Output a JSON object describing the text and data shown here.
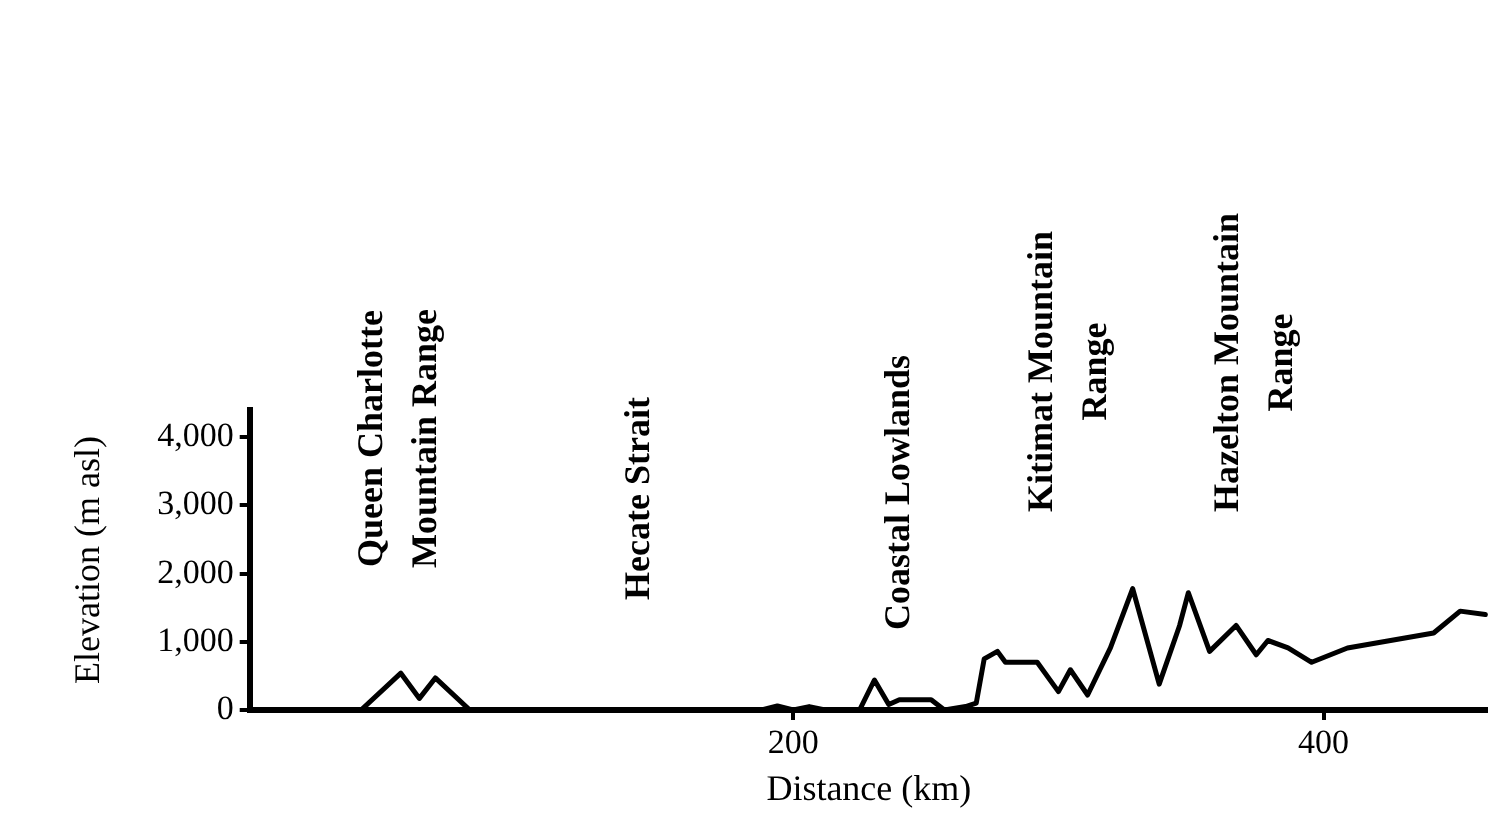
{
  "chart_data": {
    "type": "line",
    "xlabel": "Distance (km)",
    "ylabel": "Elevation (m asl)",
    "x": [
      -5,
      37,
      52,
      59,
      65,
      78,
      188,
      194,
      200,
      206,
      212,
      225,
      230.6,
      236,
      240,
      250,
      252,
      257,
      265,
      269,
      272,
      277,
      280,
      292,
      300,
      304.5,
      311,
      319.6,
      328,
      338,
      345.7,
      349,
      357,
      367,
      374.6,
      379,
      386.6,
      395.5,
      409,
      441.5,
      451.5,
      461
    ],
    "series": [
      {
        "color": "#000000",
        "values": [
          0,
          0,
          540,
          170,
          470,
          0,
          0,
          60,
          0,
          50,
          0,
          0,
          440,
          80,
          150,
          150,
          150,
          0,
          50,
          100,
          750,
          860,
          700,
          700,
          270,
          590,
          220,
          910,
          1780,
          380,
          1240,
          1720,
          860,
          1240,
          810,
          1020,
          910,
          700,
          910,
          1130,
          1450,
          1400
        ]
      }
    ],
    "xlim": [
      -5,
      462
    ],
    "xticks": [
      200,
      400
    ],
    "ylim": [
      0,
      4400
    ],
    "yticks": [
      {
        "value": 0,
        "label": "0"
      },
      {
        "value": 1000,
        "label": "1,000"
      },
      {
        "value": 2000,
        "label": "2,000"
      },
      {
        "value": 3000,
        "label": "3,000"
      },
      {
        "value": 4000,
        "label": "4,000"
      }
    ],
    "grid": false,
    "legend": false,
    "marker": "none",
    "line_style": "solid",
    "annotations": [
      "Queen Charlotte\nMountain Range",
      "Hecate Strait",
      "Coastal Lowlands",
      "Kitimat Mountain\nRange",
      "Hazelton Mountain\nRange"
    ]
  }
}
